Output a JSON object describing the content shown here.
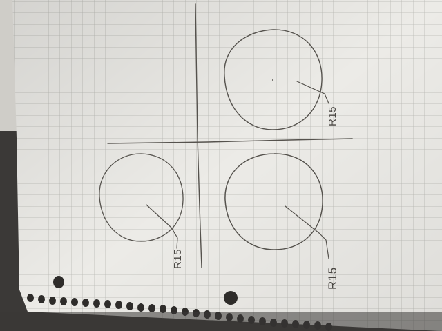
{
  "sketch": {
    "radius_labels": [
      "R15",
      "R15",
      "R15"
    ]
  }
}
